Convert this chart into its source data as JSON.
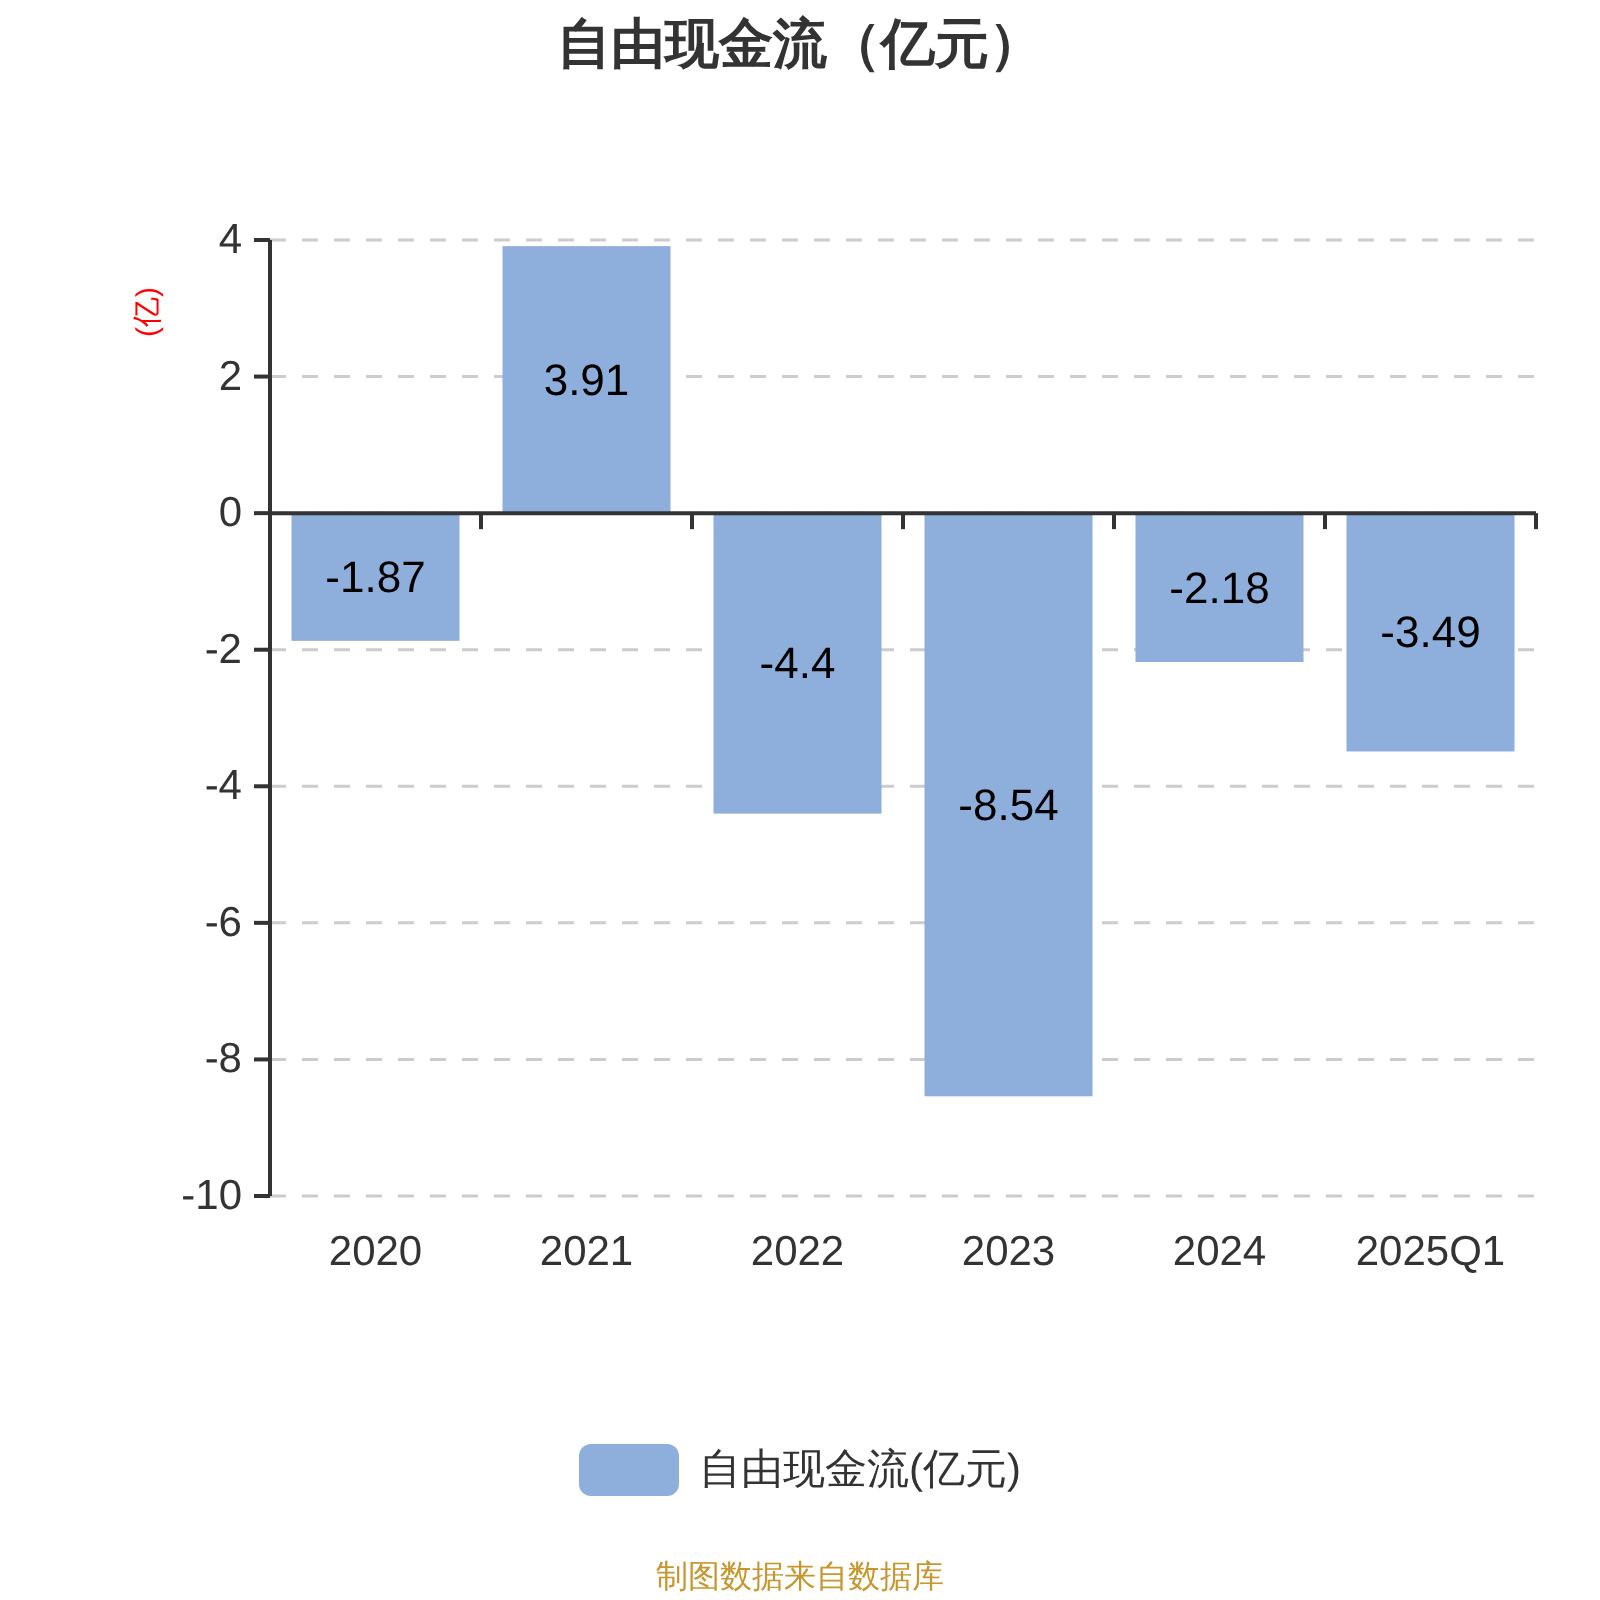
{
  "chart_data": {
    "type": "bar",
    "title": "自由现金流（亿元）",
    "ylabel": "(亿)",
    "categories": [
      "2020",
      "2021",
      "2022",
      "2023",
      "2024",
      "2025Q1"
    ],
    "series": [
      {
        "name": "自由现金流(亿元)",
        "color": "#8eaedb",
        "values": [
          -1.87,
          3.91,
          -4.4,
          -8.54,
          -2.18,
          -3.49
        ]
      }
    ],
    "ylim": [
      -10,
      4
    ],
    "yticks": [
      -10,
      -8,
      -6,
      -4,
      -2,
      0,
      2,
      4
    ],
    "grid": "y",
    "legend": "bottom",
    "data_labels": true,
    "annotations": [
      "制图数据来自数据库"
    ]
  }
}
